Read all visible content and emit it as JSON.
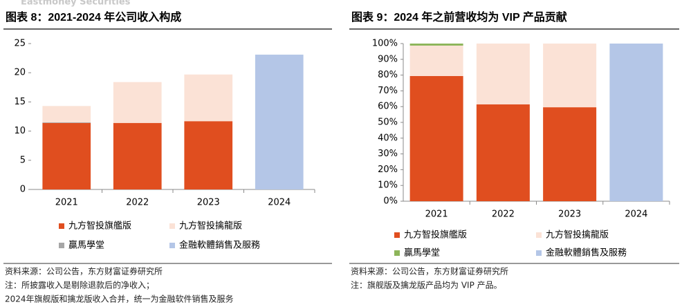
{
  "header_brand": "Eastmoney Securities",
  "chart_data": [
    {
      "type": "bar",
      "stacked": true,
      "title": "图表 8：2021-2024 年公司收入构成",
      "categories": [
        "2021",
        "2022",
        "2023",
        "2024"
      ],
      "series": [
        {
          "name": "九方智投旗艦版",
          "color": "#e04e1f",
          "values": [
            11.4,
            11.4,
            11.7,
            null
          ]
        },
        {
          "name": "九方智投擒龍版",
          "color": "#fbe2d6",
          "values": [
            2.8,
            7.0,
            8.0,
            null
          ]
        },
        {
          "name": "贏馬學堂",
          "color": "#a6a6a6",
          "values": [
            0.1,
            null,
            null,
            null
          ]
        },
        {
          "name": "金融軟體銷售及服務",
          "color": "#b4c6e7",
          "values": [
            null,
            null,
            null,
            23.1
          ]
        }
      ],
      "ylim": [
        0,
        25
      ],
      "yticks": [
        0,
        5,
        10,
        15,
        20,
        25
      ],
      "notes": [
        "资料来源：公司公告，东方财富证券研究所",
        "注：所披露收入是剔除退款后的净收入；",
        "2024年旗舰版和擒龙版收入合并，统一为金融软件销售及服务"
      ]
    },
    {
      "type": "bar",
      "stacked": true,
      "title": "图表 9：2024 年之前营收均为 VIP 产品贡献",
      "categories": [
        "2021",
        "2022",
        "2023",
        "2024"
      ],
      "series": [
        {
          "name": "九方智投旗艦版",
          "color": "#e04e1f",
          "values": [
            79.4,
            61.4,
            59.6,
            null
          ]
        },
        {
          "name": "九方智投擒龍版",
          "color": "#fbe2d6",
          "values": [
            19.3,
            38.6,
            40.4,
            null
          ]
        },
        {
          "name": "贏馬學堂",
          "color": "#8db55a",
          "values": [
            1.3,
            null,
            null,
            null
          ]
        },
        {
          "name": "金融軟體銷售及服務",
          "color": "#b4c6e7",
          "values": [
            null,
            null,
            null,
            100
          ]
        }
      ],
      "ylim": [
        0,
        100
      ],
      "yticks": [
        {
          "value": 0,
          "label": "0%"
        },
        {
          "value": 10,
          "label": "10%"
        },
        {
          "value": 20,
          "label": "20%"
        },
        {
          "value": 30,
          "label": "30%"
        },
        {
          "value": 40,
          "label": "40%"
        },
        {
          "value": 50,
          "label": "50%"
        },
        {
          "value": 60,
          "label": "60%"
        },
        {
          "value": 70,
          "label": "70%"
        },
        {
          "value": 80,
          "label": "80%"
        },
        {
          "value": 90,
          "label": "90%"
        },
        {
          "value": 100,
          "label": "100%"
        }
      ],
      "notes": [
        "资料来源：公司公告，东方财富证券研究所",
        "注：旗舰版及擒龙版产品均为 VIP 产品。"
      ]
    }
  ]
}
